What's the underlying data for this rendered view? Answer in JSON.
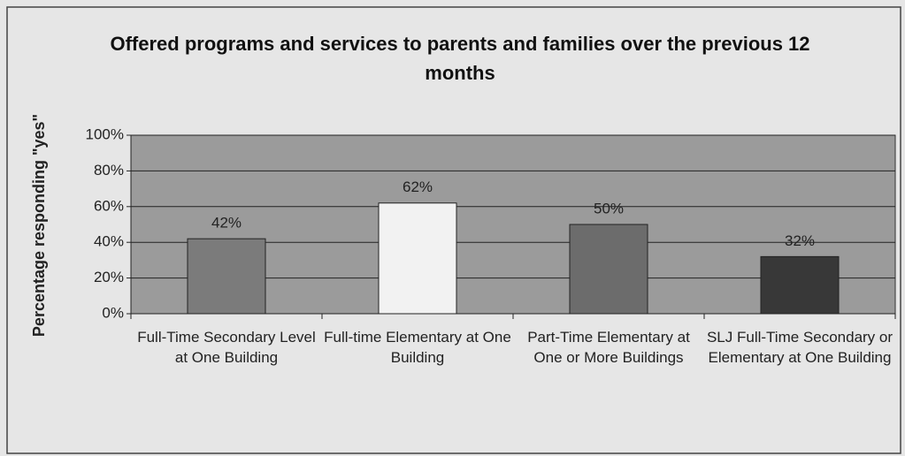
{
  "chart_data": {
    "type": "bar",
    "title": "Offered programs and services to parents and families over the previous 12 months",
    "y_label": "Percentage responding \"yes\"",
    "categories": [
      "Full-Time Secondary Level at One Building",
      "Full-time Elementary at One Building",
      "Part-Time Elementary at One or More Buildings",
      "SLJ Full-Time Secondary or Elementary at One Building"
    ],
    "values": [
      42,
      62,
      50,
      32
    ],
    "value_labels": [
      "42%",
      "62%",
      "50%",
      "32%"
    ],
    "colors": [
      "#7b7b7b",
      "#f2f2f2",
      "#6c6c6c",
      "#383838"
    ],
    "ylim": [
      0,
      100
    ],
    "yticks": [
      {
        "value": 0,
        "label": "0%"
      },
      {
        "value": 20,
        "label": "20%"
      },
      {
        "value": 40,
        "label": "40%"
      },
      {
        "value": 60,
        "label": "60%"
      },
      {
        "value": 80,
        "label": "80%"
      },
      {
        "value": 100,
        "label": "100%"
      }
    ],
    "grid": true
  }
}
